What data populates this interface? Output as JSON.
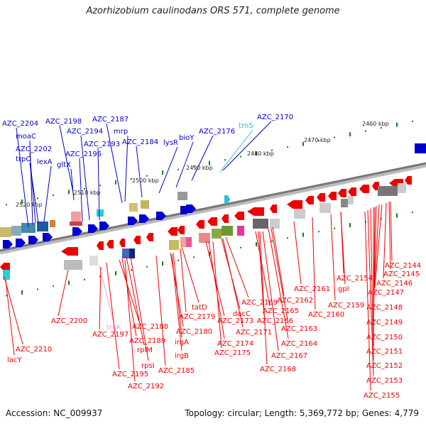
{
  "title": "Azorhizobium caulinodans ORS 571, complete genome",
  "footer": {
    "accession": "Accession: NC_009937",
    "topology": "Topology: circular; Length: 5,369,772 bp; Genes: 4,779"
  },
  "colors": {
    "forward": "#0000cc",
    "reverse": "#ee0000",
    "rna": "#33bbdd",
    "rna_rev": "#f0a0d0",
    "tick": "#1a7a1a",
    "backbone": "#888888"
  },
  "ruler": {
    "ticks": [
      "2460 kbp",
      "2470 kbp",
      "2480 kbp",
      "2490 kbp",
      "2500 kbp",
      "2510 kbp",
      "2520 kbp"
    ]
  },
  "top_labels": [
    {
      "text": "AZC_2204",
      "color": "blue"
    },
    {
      "text": "moaC",
      "color": "blue"
    },
    {
      "text": "AZC_2202",
      "color": "blue"
    },
    {
      "text": "trpC",
      "color": "blue"
    },
    {
      "text": "lexA",
      "color": "blue"
    },
    {
      "text": "AZC_2198",
      "color": "blue"
    },
    {
      "text": "gltX",
      "color": "blue"
    },
    {
      "text": "AZC_2194",
      "color": "blue"
    },
    {
      "text": "AZC_2196",
      "color": "blue"
    },
    {
      "text": "AZC_2193",
      "color": "blue"
    },
    {
      "text": "AZC_2187",
      "color": "blue"
    },
    {
      "text": "mrp",
      "color": "blue"
    },
    {
      "text": "AZC_2184",
      "color": "blue"
    },
    {
      "text": "lysR",
      "color": "blue"
    },
    {
      "text": "bioY",
      "color": "blue"
    },
    {
      "text": "AZC_2176",
      "color": "blue"
    },
    {
      "text": "trnS",
      "color": "cyan"
    },
    {
      "text": "AZC_2170",
      "color": "blue"
    }
  ],
  "bottom_labels": [
    {
      "text": "AZC_2210",
      "color": "red"
    },
    {
      "text": "lacY",
      "color": "red"
    },
    {
      "text": "AZC_2200",
      "color": "red"
    },
    {
      "text": "trnK",
      "color": "pink"
    },
    {
      "text": "AZC_2197",
      "color": "red"
    },
    {
      "text": "AZC_2188",
      "color": "red"
    },
    {
      "text": "AZC_2189",
      "color": "red"
    },
    {
      "text": "rplM",
      "color": "red"
    },
    {
      "text": "rpsI",
      "color": "red"
    },
    {
      "text": "AZC_2195",
      "color": "red"
    },
    {
      "text": "AZC_2192",
      "color": "red"
    },
    {
      "text": "AZC_2180",
      "color": "red"
    },
    {
      "text": "irgA",
      "color": "red"
    },
    {
      "text": "irgB",
      "color": "red"
    },
    {
      "text": "AZC_2185",
      "color": "red"
    },
    {
      "text": "tatD",
      "color": "red"
    },
    {
      "text": "AZC_2179",
      "color": "red"
    },
    {
      "text": "AZC_2173",
      "color": "red"
    },
    {
      "text": "AZC_2174",
      "color": "red"
    },
    {
      "text": "AZC_2175",
      "color": "red"
    },
    {
      "text": "dacC",
      "color": "red"
    },
    {
      "text": "AZC_2169",
      "color": "red"
    },
    {
      "text": "AZC_2171",
      "color": "red"
    },
    {
      "text": "AZC_2165",
      "color": "red"
    },
    {
      "text": "AZC_2166",
      "color": "red"
    },
    {
      "text": "AZC_2162",
      "color": "red"
    },
    {
      "text": "AZC_2163",
      "color": "red"
    },
    {
      "text": "AZC_2164",
      "color": "red"
    },
    {
      "text": "AZC_2167",
      "color": "red"
    },
    {
      "text": "AZC_2168",
      "color": "red"
    },
    {
      "text": "AZC_2161",
      "color": "red"
    },
    {
      "text": "AZC_2160",
      "color": "red"
    },
    {
      "text": "AZC_2159",
      "color": "red"
    },
    {
      "text": "gpl",
      "color": "red"
    },
    {
      "text": "AZC_2154",
      "color": "red"
    },
    {
      "text": "AZC_2144",
      "color": "red"
    },
    {
      "text": "AZC_2145",
      "color": "red"
    },
    {
      "text": "AZC_2146",
      "color": "red"
    },
    {
      "text": "AZC_2147",
      "color": "red"
    },
    {
      "text": "AZC_2148",
      "color": "red"
    },
    {
      "text": "AZC_2149",
      "color": "red"
    },
    {
      "text": "AZC_2150",
      "color": "red"
    },
    {
      "text": "AZC_2151",
      "color": "red"
    },
    {
      "text": "AZC_2152",
      "color": "red"
    },
    {
      "text": "AZC_2153",
      "color": "red"
    },
    {
      "text": "AZC_2155",
      "color": "red"
    }
  ]
}
